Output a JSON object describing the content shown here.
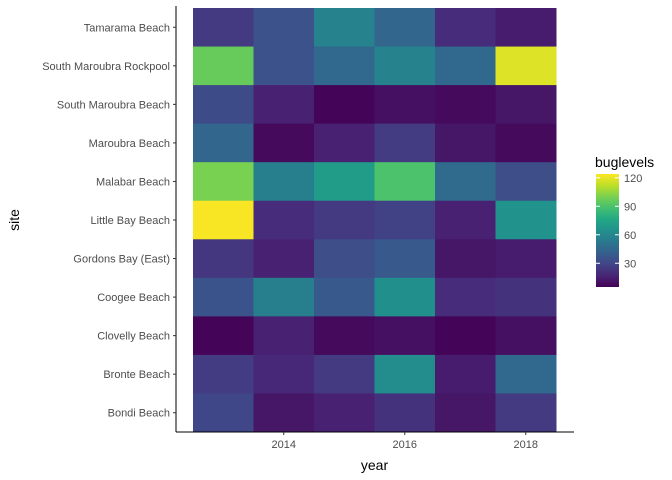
{
  "chart_data": {
    "type": "heatmap",
    "xlabel": "year",
    "ylabel": "site",
    "x": [
      2013,
      2014,
      2015,
      2016,
      2017,
      2018
    ],
    "x_ticks": [
      2014,
      2016,
      2018
    ],
    "x_tick_labels": [
      "2014",
      "2016",
      "2018"
    ],
    "sites": [
      "Tamarama Beach",
      "South Maroubra Rockpool",
      "South Maroubra Beach",
      "Maroubra Beach",
      "Malabar Beach",
      "Little Bay Beach",
      "Gordons Bay (East)",
      "Coogee Beach",
      "Clovelly Beach",
      "Bronte Beach",
      "Bondi Beach"
    ],
    "values": [
      [
        25,
        35,
        58,
        44,
        20,
        14
      ],
      [
        96,
        35,
        45,
        58,
        45,
        118
      ],
      [
        32,
        16,
        6,
        10,
        8,
        12
      ],
      [
        44,
        8,
        16,
        26,
        12,
        8
      ],
      [
        100,
        56,
        70,
        90,
        46,
        33
      ],
      [
        123,
        20,
        25,
        28,
        16,
        65
      ],
      [
        24,
        16,
        33,
        38,
        12,
        14
      ],
      [
        36,
        56,
        38,
        64,
        20,
        22
      ],
      [
        6,
        16,
        8,
        10,
        6,
        10
      ],
      [
        26,
        18,
        25,
        62,
        14,
        45
      ],
      [
        30,
        12,
        16,
        22,
        12,
        25
      ]
    ],
    "colorbar": {
      "title": "buglevels",
      "min": 5,
      "max": 124,
      "ticks": [
        30,
        60,
        90,
        120
      ],
      "tick_labels": [
        "30",
        "60",
        "90",
        "120"
      ],
      "colormap": "viridis"
    },
    "legend_position": "right",
    "grid": false
  }
}
